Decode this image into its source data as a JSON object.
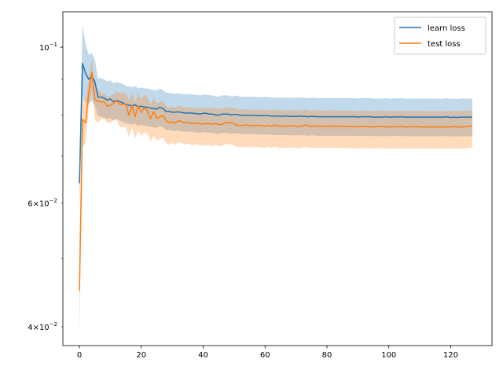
{
  "chart_data": {
    "type": "line",
    "title": "",
    "xlabel": "",
    "ylabel": "",
    "x_axis": {
      "min": -5.35,
      "max": 133.35,
      "ticks": [
        0,
        20,
        40,
        60,
        80,
        100,
        120
      ]
    },
    "y_axis": {
      "scale": "log",
      "min": 0.0376,
      "max": 0.1123,
      "major_ticks": [
        {
          "value": 0.1,
          "label": "10",
          "exponent": "−1"
        }
      ],
      "minor_ticks": [
        {
          "value": 0.04,
          "label": "4×10",
          "exponent": "−2"
        },
        {
          "value": 0.06,
          "label": "6×10",
          "exponent": "−2"
        }
      ]
    },
    "legend": {
      "position": "top-right"
    },
    "grid": false,
    "x": [
      0,
      1,
      2,
      3,
      4,
      5,
      6,
      7,
      8,
      9,
      10,
      11,
      12,
      13,
      14,
      15,
      16,
      17,
      18,
      19,
      20,
      21,
      22,
      23,
      24,
      25,
      26,
      27,
      28,
      29,
      30,
      31,
      32,
      33,
      34,
      35,
      36,
      37,
      38,
      39,
      40,
      41,
      42,
      43,
      44,
      45,
      46,
      47,
      48,
      49,
      50,
      51,
      52,
      53,
      54,
      55,
      56,
      57,
      58,
      59,
      60,
      61,
      62,
      63,
      64,
      65,
      66,
      67,
      68,
      69,
      70,
      71,
      72,
      73,
      74,
      75,
      76,
      77,
      78,
      79,
      80,
      81,
      82,
      83,
      84,
      85,
      86,
      87,
      88,
      89,
      90,
      91,
      92,
      93,
      94,
      95,
      96,
      97,
      98,
      99,
      100,
      101,
      102,
      103,
      104,
      105,
      106,
      107,
      108,
      109,
      110,
      111,
      112,
      113,
      114,
      115,
      116,
      117,
      118,
      119,
      120,
      121,
      122,
      123,
      124,
      125,
      126,
      127
    ],
    "series": [
      {
        "name": "learn loss",
        "color": "#1f77b4",
        "band_color": "#1f77b4",
        "values": [
          0.064,
          0.0948,
          0.0918,
          0.09,
          0.091,
          0.0893,
          0.0849,
          0.0849,
          0.0846,
          0.0841,
          0.0844,
          0.0836,
          0.084,
          0.0837,
          0.0833,
          0.0829,
          0.0827,
          0.0825,
          0.0828,
          0.0822,
          0.0824,
          0.0822,
          0.0821,
          0.0819,
          0.0818,
          0.0816,
          0.0821,
          0.0818,
          0.081,
          0.081,
          0.0808,
          0.0808,
          0.0809,
          0.0807,
          0.0806,
          0.0806,
          0.0806,
          0.0805,
          0.0804,
          0.0803,
          0.0805,
          0.0805,
          0.0803,
          0.0803,
          0.0801,
          0.08,
          0.0803,
          0.0803,
          0.0803,
          0.0801,
          0.0802,
          0.0802,
          0.08,
          0.08,
          0.08,
          0.08,
          0.08,
          0.0799,
          0.0799,
          0.0799,
          0.0799,
          0.0799,
          0.0798,
          0.0798,
          0.0798,
          0.0797,
          0.0798,
          0.0798,
          0.0797,
          0.0797,
          0.0797,
          0.0798,
          0.0797,
          0.0797,
          0.0796,
          0.0797,
          0.0797,
          0.0796,
          0.0796,
          0.0796,
          0.0796,
          0.0796,
          0.0796,
          0.0796,
          0.0796,
          0.0796,
          0.0796,
          0.0796,
          0.0796,
          0.0796,
          0.0795,
          0.0796,
          0.0796,
          0.0796,
          0.0796,
          0.0795,
          0.0795,
          0.0795,
          0.0795,
          0.0796,
          0.0795,
          0.0795,
          0.0796,
          0.0795,
          0.0796,
          0.0795,
          0.0795,
          0.0795,
          0.0795,
          0.0795,
          0.0795,
          0.0795,
          0.0795,
          0.0795,
          0.0795,
          0.0795,
          0.0795,
          0.0795,
          0.0795,
          0.0796,
          0.0794,
          0.0795,
          0.0794,
          0.0795,
          0.0795,
          0.0795,
          0.0795,
          0.0795
        ],
        "lower": [
          0.059,
          0.0855,
          0.0835,
          0.083,
          0.084,
          0.0826,
          0.0797,
          0.0797,
          0.0794,
          0.079,
          0.0792,
          0.0787,
          0.079,
          0.0786,
          0.0783,
          0.0779,
          0.0778,
          0.0776,
          0.0779,
          0.0773,
          0.0775,
          0.0773,
          0.0772,
          0.077,
          0.0769,
          0.0768,
          0.0772,
          0.0769,
          0.0762,
          0.0762,
          0.076,
          0.076,
          0.0761,
          0.0759,
          0.0758,
          0.0758,
          0.0758,
          0.0757,
          0.0756,
          0.0755,
          0.0757,
          0.0757,
          0.0755,
          0.0755,
          0.0753,
          0.0752,
          0.0755,
          0.0755,
          0.0755,
          0.0753,
          0.0754,
          0.0754,
          0.0752,
          0.0752,
          0.0752,
          0.0752,
          0.0752,
          0.0751,
          0.0751,
          0.0751,
          0.0751,
          0.0751,
          0.075,
          0.075,
          0.075,
          0.0749,
          0.075,
          0.075,
          0.0749,
          0.0749,
          0.0749,
          0.075,
          0.0749,
          0.0749,
          0.0748,
          0.0749,
          0.0749,
          0.0748,
          0.0748,
          0.0748,
          0.0748,
          0.0748,
          0.0748,
          0.0748,
          0.0748,
          0.0748,
          0.0748,
          0.0748,
          0.0748,
          0.0748,
          0.0747,
          0.0748,
          0.0748,
          0.0748,
          0.0748,
          0.0747,
          0.0747,
          0.0747,
          0.0747,
          0.0748,
          0.0747,
          0.0747,
          0.0748,
          0.0747,
          0.0748,
          0.0747,
          0.0747,
          0.0747,
          0.0747,
          0.0747,
          0.0747,
          0.0747,
          0.0747,
          0.0747,
          0.0747,
          0.0747,
          0.0747,
          0.0747,
          0.0747,
          0.0748,
          0.0746,
          0.0747,
          0.0746,
          0.0747,
          0.0747,
          0.0747,
          0.0747,
          0.0747
        ],
        "upper": [
          0.0705,
          0.1075,
          0.101,
          0.0975,
          0.098,
          0.096,
          0.0903,
          0.0903,
          0.09,
          0.0894,
          0.0897,
          0.0888,
          0.0892,
          0.089,
          0.0886,
          0.0881,
          0.0879,
          0.0877,
          0.088,
          0.0874,
          0.0876,
          0.0874,
          0.0873,
          0.0871,
          0.0869,
          0.0867,
          0.0873,
          0.0869,
          0.0861,
          0.0861,
          0.0859,
          0.0859,
          0.086,
          0.0858,
          0.0857,
          0.0857,
          0.0857,
          0.0856,
          0.0855,
          0.0854,
          0.0856,
          0.0856,
          0.0854,
          0.0854,
          0.0851,
          0.085,
          0.0854,
          0.0854,
          0.0854,
          0.0851,
          0.0853,
          0.0853,
          0.085,
          0.085,
          0.085,
          0.085,
          0.085,
          0.0849,
          0.0849,
          0.0849,
          0.0849,
          0.0849,
          0.0848,
          0.0848,
          0.0848,
          0.0847,
          0.0848,
          0.0848,
          0.0847,
          0.0847,
          0.0847,
          0.0848,
          0.0847,
          0.0847,
          0.0846,
          0.0847,
          0.0847,
          0.0846,
          0.0846,
          0.0846,
          0.0846,
          0.0846,
          0.0846,
          0.0846,
          0.0846,
          0.0846,
          0.0846,
          0.0846,
          0.0846,
          0.0846,
          0.0845,
          0.0846,
          0.0846,
          0.0846,
          0.0846,
          0.0845,
          0.0845,
          0.0845,
          0.0845,
          0.0846,
          0.0845,
          0.0845,
          0.0846,
          0.0845,
          0.0846,
          0.0845,
          0.0845,
          0.0845,
          0.0845,
          0.0845,
          0.0845,
          0.0845,
          0.0845,
          0.0845,
          0.0845,
          0.0845,
          0.0845,
          0.0845,
          0.0845,
          0.0846,
          0.0844,
          0.0845,
          0.0844,
          0.0845,
          0.0845,
          0.0845,
          0.0845,
          0.0845
        ]
      },
      {
        "name": "test loss",
        "color": "#ff7f0e",
        "band_color": "#ff7f0e",
        "values": [
          0.045,
          0.079,
          0.078,
          0.086,
          0.092,
          0.0843,
          0.0837,
          0.0836,
          0.0836,
          0.0824,
          0.0827,
          0.0832,
          0.0839,
          0.0829,
          0.0829,
          0.083,
          0.08,
          0.0826,
          0.0796,
          0.0825,
          0.0808,
          0.082,
          0.0811,
          0.0791,
          0.081,
          0.0792,
          0.0796,
          0.08,
          0.0786,
          0.078,
          0.0783,
          0.0779,
          0.0786,
          0.0784,
          0.078,
          0.0782,
          0.0779,
          0.0779,
          0.078,
          0.0777,
          0.0778,
          0.0778,
          0.0778,
          0.0777,
          0.0779,
          0.0776,
          0.0776,
          0.078,
          0.0781,
          0.0781,
          0.0778,
          0.0774,
          0.0774,
          0.0774,
          0.0775,
          0.0774,
          0.0773,
          0.0774,
          0.0774,
          0.0773,
          0.0772,
          0.0774,
          0.0772,
          0.0775,
          0.0773,
          0.0772,
          0.0772,
          0.0772,
          0.0772,
          0.0773,
          0.0772,
          0.0771,
          0.0772,
          0.0775,
          0.0772,
          0.0772,
          0.0772,
          0.0772,
          0.0771,
          0.0772,
          0.0772,
          0.0772,
          0.0772,
          0.0771,
          0.0772,
          0.0772,
          0.0771,
          0.0771,
          0.0771,
          0.077,
          0.0771,
          0.0771,
          0.0771,
          0.0771,
          0.077,
          0.077,
          0.0771,
          0.0771,
          0.0771,
          0.077,
          0.077,
          0.077,
          0.0771,
          0.077,
          0.0771,
          0.077,
          0.077,
          0.0771,
          0.077,
          0.0771,
          0.077,
          0.077,
          0.077,
          0.077,
          0.077,
          0.077,
          0.077,
          0.077,
          0.077,
          0.077,
          0.077,
          0.0771,
          0.077,
          0.077,
          0.077,
          0.0771,
          0.0772,
          0.0772
        ],
        "lower": [
          0.0385,
          0.072,
          0.073,
          0.0812,
          0.0868,
          0.079,
          0.078,
          0.079,
          0.079,
          0.078,
          0.0782,
          0.0785,
          0.079,
          0.077,
          0.0769,
          0.077,
          0.0745,
          0.0768,
          0.0741,
          0.076,
          0.0748,
          0.0757,
          0.0752,
          0.0735,
          0.0748,
          0.0736,
          0.074,
          0.0743,
          0.0731,
          0.0727,
          0.073,
          0.0726,
          0.0732,
          0.073,
          0.0727,
          0.0729,
          0.0726,
          0.0726,
          0.0727,
          0.0724,
          0.0725,
          0.0725,
          0.0725,
          0.0724,
          0.0726,
          0.0723,
          0.0723,
          0.0727,
          0.0728,
          0.0728,
          0.0725,
          0.0721,
          0.0721,
          0.0721,
          0.0722,
          0.0721,
          0.072,
          0.0721,
          0.0721,
          0.072,
          0.0719,
          0.0721,
          0.0719,
          0.0722,
          0.072,
          0.0719,
          0.0719,
          0.0719,
          0.0719,
          0.072,
          0.0719,
          0.0718,
          0.0719,
          0.0722,
          0.0719,
          0.0719,
          0.0719,
          0.0719,
          0.0718,
          0.0719,
          0.0719,
          0.0719,
          0.0719,
          0.0718,
          0.0719,
          0.0719,
          0.0718,
          0.0718,
          0.0718,
          0.0717,
          0.0718,
          0.0718,
          0.0718,
          0.0718,
          0.0717,
          0.0717,
          0.0718,
          0.0718,
          0.0718,
          0.0717,
          0.0717,
          0.0717,
          0.0718,
          0.0717,
          0.0718,
          0.0717,
          0.0717,
          0.0718,
          0.0717,
          0.0718,
          0.0717,
          0.0717,
          0.0717,
          0.0717,
          0.0717,
          0.0717,
          0.0717,
          0.0717,
          0.0717,
          0.0717,
          0.0717,
          0.0718,
          0.0717,
          0.0717,
          0.0717,
          0.0718,
          0.0719,
          0.0719
        ],
        "upper": [
          0.052,
          0.086,
          0.084,
          0.09,
          0.096,
          0.088,
          0.087,
          0.086,
          0.0858,
          0.085,
          0.0852,
          0.0857,
          0.0865,
          0.086,
          0.086,
          0.0862,
          0.084,
          0.0858,
          0.0835,
          0.086,
          0.0845,
          0.0855,
          0.085,
          0.083,
          0.0848,
          0.0832,
          0.0835,
          0.0838,
          0.0826,
          0.082,
          0.0823,
          0.082,
          0.0825,
          0.0824,
          0.082,
          0.0822,
          0.082,
          0.082,
          0.082,
          0.0818,
          0.0819,
          0.0819,
          0.0819,
          0.0818,
          0.082,
          0.0817,
          0.0817,
          0.082,
          0.0821,
          0.0821,
          0.0819,
          0.0815,
          0.0815,
          0.0815,
          0.0816,
          0.0815,
          0.0814,
          0.0815,
          0.0815,
          0.0814,
          0.0813,
          0.0815,
          0.0813,
          0.0816,
          0.0814,
          0.0813,
          0.0813,
          0.0813,
          0.0813,
          0.0814,
          0.0813,
          0.0812,
          0.0813,
          0.0816,
          0.0813,
          0.0813,
          0.0813,
          0.0813,
          0.0812,
          0.0813,
          0.0813,
          0.0813,
          0.0813,
          0.0812,
          0.0813,
          0.0813,
          0.0812,
          0.0812,
          0.0812,
          0.0811,
          0.0812,
          0.0812,
          0.0812,
          0.0812,
          0.0811,
          0.0811,
          0.0812,
          0.0812,
          0.0812,
          0.0811,
          0.0811,
          0.0811,
          0.0812,
          0.0811,
          0.0812,
          0.0811,
          0.0811,
          0.0812,
          0.0811,
          0.0812,
          0.0811,
          0.0811,
          0.0811,
          0.0811,
          0.0811,
          0.0811,
          0.0811,
          0.0811,
          0.0811,
          0.0811,
          0.0811,
          0.0812,
          0.0811,
          0.0811,
          0.0811,
          0.0812,
          0.0813,
          0.0813
        ]
      }
    ]
  }
}
